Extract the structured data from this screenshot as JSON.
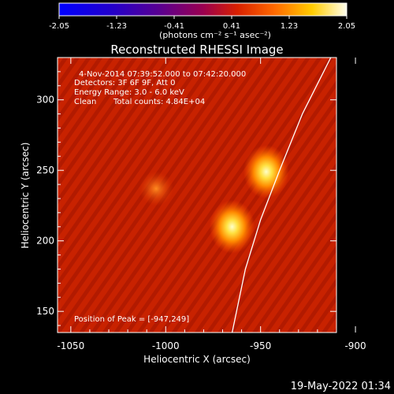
{
  "colorbar": {
    "ticks": [
      "-2.05",
      "-1.23",
      "-0.41",
      "0.41",
      "1.23",
      "2.05"
    ],
    "unit_label": "(photons cm⁻² s⁻¹ asec⁻²)"
  },
  "chart_data": {
    "type": "heatmap",
    "title": "Reconstructed RHESSI Image",
    "xlabel": "Heliocentric X (arcsec)",
    "ylabel": "Heliocentric Y (arcsec)",
    "xlim": [
      -1057,
      -910
    ],
    "ylim": [
      135,
      330
    ],
    "x_ticks": [
      -1050,
      -1000,
      -950,
      -900
    ],
    "y_ticks": [
      150,
      200,
      250,
      300
    ],
    "colorbar_range": [
      -2.05,
      2.05
    ],
    "sources": [
      {
        "x": -947,
        "y": 249,
        "peak": 1.0
      },
      {
        "x": -965,
        "y": 210,
        "peak": 0.9
      },
      {
        "x": -1005,
        "y": 237,
        "peak": 0.35
      }
    ],
    "limb_curve": [
      [
        -913,
        330
      ],
      [
        -928,
        290
      ],
      [
        -940,
        250
      ],
      [
        -950,
        215
      ],
      [
        -958,
        180
      ],
      [
        -965,
        135
      ]
    ],
    "annotations": [
      "4-Nov-2014 07:39:52.000 to 07:42:20.000",
      "Detectors: 3F 6F 9F, Att 0",
      "Energy Range: 3.0 - 6.0 keV",
      "Clean",
      "Total counts: 4.84E+04",
      "Position of Peak = [-947,249]"
    ]
  },
  "footer": {
    "date": "19-May-2022 01:34"
  },
  "colors": {
    "limb": "#ffffff",
    "background": "#000000"
  }
}
